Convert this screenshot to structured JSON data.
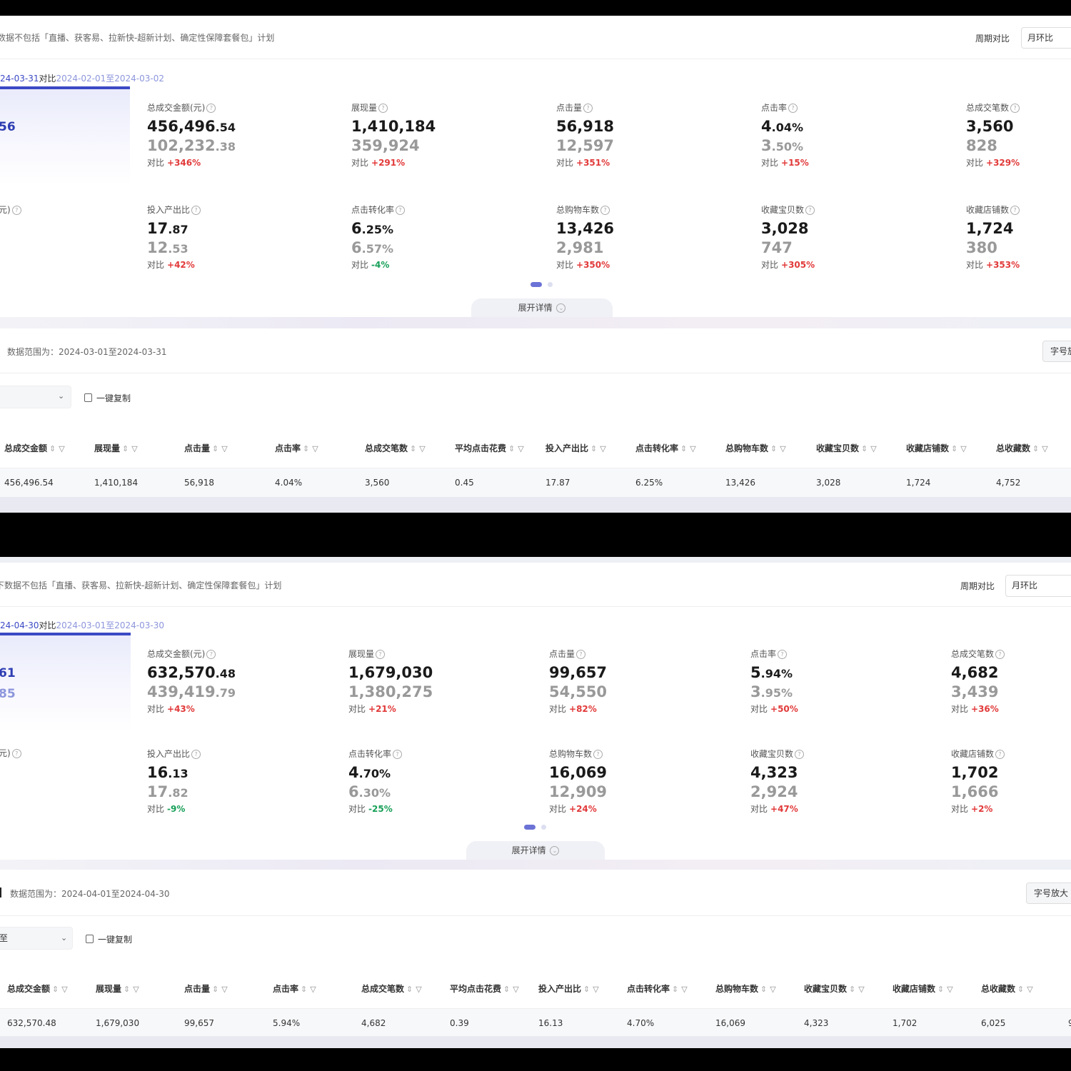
{
  "panel1": {
    "notice": "数据不包括「直播、获客易、拉新快-超新计划、确定性保障套餐包」计划",
    "period_label": "周期对比",
    "period_value": "月环比",
    "date_current": "24-03-31",
    "date_compare_word": "对比",
    "date_compare_range": "2024-02-01至2024-03-02",
    "hero_value": "56",
    "hero_unit_label": "元)",
    "metrics_row1": [
      {
        "label": "总成交金额(元)",
        "int": "456,496",
        "dec": ".54",
        "prev_int": "102,232",
        "prev_dec": ".38",
        "cmp_label": "对比",
        "change": "+346%",
        "dir": "up"
      },
      {
        "label": "展现量",
        "int": "1,410,184",
        "dec": "",
        "prev_int": "359,924",
        "prev_dec": "",
        "cmp_label": "对比",
        "change": "+291%",
        "dir": "up"
      },
      {
        "label": "点击量",
        "int": "56,918",
        "dec": "",
        "prev_int": "12,597",
        "prev_dec": "",
        "cmp_label": "对比",
        "change": "+351%",
        "dir": "up"
      },
      {
        "label": "点击率",
        "int": "4",
        "dec": ".04%",
        "prev_int": "3",
        "prev_dec": ".50%",
        "cmp_label": "对比",
        "change": "+15%",
        "dir": "up"
      },
      {
        "label": "总成交笔数",
        "int": "3,560",
        "dec": "",
        "prev_int": "828",
        "prev_dec": "",
        "cmp_label": "对比",
        "change": "+329%",
        "dir": "up"
      }
    ],
    "metrics_row2": [
      {
        "label": "投入产出比",
        "int": "17",
        "dec": ".87",
        "prev_int": "12",
        "prev_dec": ".53",
        "cmp_label": "对比",
        "change": "+42%",
        "dir": "up"
      },
      {
        "label": "点击转化率",
        "int": "6",
        "dec": ".25%",
        "prev_int": "6",
        "prev_dec": ".57%",
        "cmp_label": "对比",
        "change": "-4%",
        "dir": "down"
      },
      {
        "label": "总购物车数",
        "int": "13,426",
        "dec": "",
        "prev_int": "2,981",
        "prev_dec": "",
        "cmp_label": "对比",
        "change": "+350%",
        "dir": "up"
      },
      {
        "label": "收藏宝贝数",
        "int": "3,028",
        "dec": "",
        "prev_int": "747",
        "prev_dec": "",
        "cmp_label": "对比",
        "change": "+305%",
        "dir": "up"
      },
      {
        "label": "收藏店铺数",
        "int": "1,724",
        "dec": "",
        "prev_int": "380",
        "prev_dec": "",
        "cmp_label": "对比",
        "change": "+353%",
        "dir": "up"
      }
    ],
    "expand_label": "展开详情",
    "data_range": "数据范围为：2024-03-01至2024-03-31",
    "font_button": "字号放",
    "copy_label": "一键复制",
    "table_headers": [
      "总成交金额",
      "展现量",
      "点击量",
      "点击率",
      "总成交笔数",
      "平均点击花费",
      "投入产出比",
      "点击转化率",
      "总购物车数",
      "收藏宝贝数",
      "收藏店铺数",
      "总收藏数"
    ],
    "table_row": [
      "456,496.54",
      "1,410,184",
      "56,918",
      "4.04%",
      "3,560",
      "0.45",
      "17.87",
      "6.25%",
      "13,426",
      "3,028",
      "1,724",
      "4,752"
    ]
  },
  "panel2": {
    "notice": "下数据不包括「直播、获客易、拉新快-超新计划、确定性保障套餐包」计划",
    "period_label": "周期对比",
    "period_value": "月环比",
    "date_current": "24-04-30",
    "date_compare_word": "对比",
    "date_compare_range": "2024-03-01至2024-03-30",
    "hero_value": "61",
    "hero_value2": "85",
    "hero_unit_label": "元)",
    "metrics_row1": [
      {
        "label": "总成交金额(元)",
        "int": "632,570",
        "dec": ".48",
        "prev_int": "439,419",
        "prev_dec": ".79",
        "cmp_label": "对比",
        "change": "+43%",
        "dir": "up"
      },
      {
        "label": "展现量",
        "int": "1,679,030",
        "dec": "",
        "prev_int": "1,380,275",
        "prev_dec": "",
        "cmp_label": "对比",
        "change": "+21%",
        "dir": "up"
      },
      {
        "label": "点击量",
        "int": "99,657",
        "dec": "",
        "prev_int": "54,550",
        "prev_dec": "",
        "cmp_label": "对比",
        "change": "+82%",
        "dir": "up"
      },
      {
        "label": "点击率",
        "int": "5",
        "dec": ".94%",
        "prev_int": "3",
        "prev_dec": ".95%",
        "cmp_label": "对比",
        "change": "+50%",
        "dir": "up"
      },
      {
        "label": "总成交笔数",
        "int": "4,682",
        "dec": "",
        "prev_int": "3,439",
        "prev_dec": "",
        "cmp_label": "对比",
        "change": "+36%",
        "dir": "up"
      }
    ],
    "metrics_row2": [
      {
        "label": "投入产出比",
        "int": "16",
        "dec": ".13",
        "prev_int": "17",
        "prev_dec": ".82",
        "cmp_label": "对比",
        "change": "-9%",
        "dir": "down"
      },
      {
        "label": "点击转化率",
        "int": "4",
        "dec": ".70%",
        "prev_int": "6",
        "prev_dec": ".30%",
        "cmp_label": "对比",
        "change": "-25%",
        "dir": "down"
      },
      {
        "label": "总购物车数",
        "int": "16,069",
        "dec": "",
        "prev_int": "12,909",
        "prev_dec": "",
        "cmp_label": "对比",
        "change": "+24%",
        "dir": "up"
      },
      {
        "label": "收藏宝贝数",
        "int": "4,323",
        "dec": "",
        "prev_int": "2,924",
        "prev_dec": "",
        "cmp_label": "对比",
        "change": "+47%",
        "dir": "up"
      },
      {
        "label": "收藏店铺数",
        "int": "1,702",
        "dec": "",
        "prev_int": "1,666",
        "prev_dec": "",
        "cmp_label": "对比",
        "change": "+2%",
        "dir": "up"
      }
    ],
    "expand_label": "展开详情",
    "data_range": "数据范围为：2024-04-01至2024-04-30",
    "font_button": "字号放大",
    "copy_label": "一键复制",
    "dropdown_fragment": "至",
    "table_headers": [
      "总成交金额",
      "展现量",
      "点击量",
      "点击率",
      "总成交笔数",
      "平均点击花费",
      "投入产出比",
      "点击转化率",
      "总购物车数",
      "收藏宝贝数",
      "收藏店铺数",
      "总收藏数"
    ],
    "table_row": [
      "632,570.48",
      "1,679,030",
      "99,657",
      "5.94%",
      "4,682",
      "0.39",
      "16.13",
      "4.70%",
      "16,069",
      "4,323",
      "1,702",
      "6,025"
    ],
    "table_row_extra": "9"
  },
  "colors": {
    "accent": "#3b49c5",
    "up": "#e23a3a",
    "down": "#18a058",
    "page_bg": "#000000"
  }
}
